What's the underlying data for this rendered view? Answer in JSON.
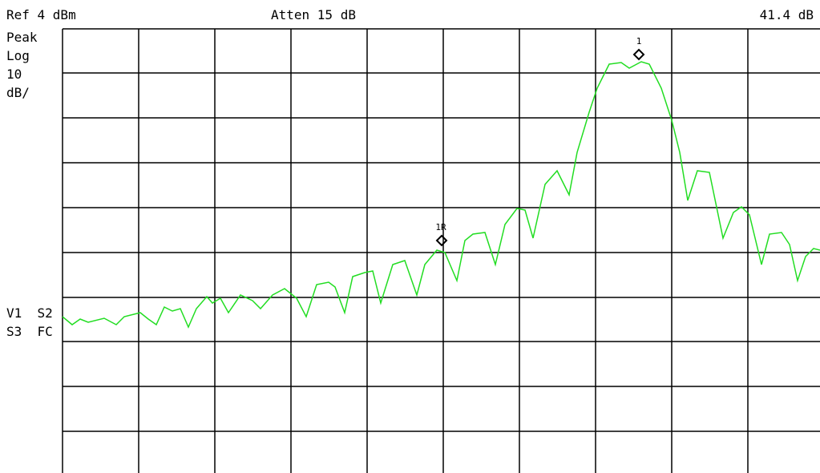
{
  "header": {
    "ref": "Ref 4 dBm",
    "atten": "Atten 15 dB",
    "delta": "41.4 dB"
  },
  "left_panel": {
    "detector": "Peak",
    "scale": "Log",
    "per_div": "10",
    "unit": "dB/",
    "flags_1": "V1  S2",
    "flags_2": "S3  FC"
  },
  "markers": [
    {
      "label": "1"
    },
    {
      "label": "1R"
    }
  ]
}
